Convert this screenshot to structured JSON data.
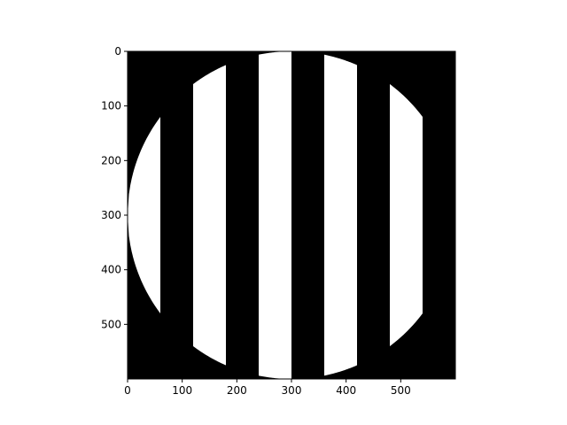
{
  "chart_data": {
    "type": "heatmap",
    "title": "",
    "xlabel": "",
    "ylabel": "",
    "image_size": [
      600,
      600
    ],
    "xlim": [
      0,
      600
    ],
    "ylim": [
      600,
      0
    ],
    "grid": false,
    "colormap": "gray",
    "background_value": 0,
    "foreground_value": 1,
    "circle": {
      "center": [
        300,
        300
      ],
      "radius": 300
    },
    "stripe_period": 120,
    "stripe_on_width": 60,
    "stripe_phase": 0,
    "xticks": [
      0,
      100,
      200,
      300,
      400,
      500
    ],
    "yticks": [
      0,
      100,
      200,
      300,
      400,
      500
    ],
    "xtick_labels": [
      "0",
      "100",
      "200",
      "300",
      "400",
      "500"
    ],
    "ytick_labels": [
      "0",
      "100",
      "200",
      "300",
      "400",
      "500"
    ]
  },
  "colors": {
    "on": "#ffffff",
    "off": "#000000",
    "axis": "#000000"
  }
}
